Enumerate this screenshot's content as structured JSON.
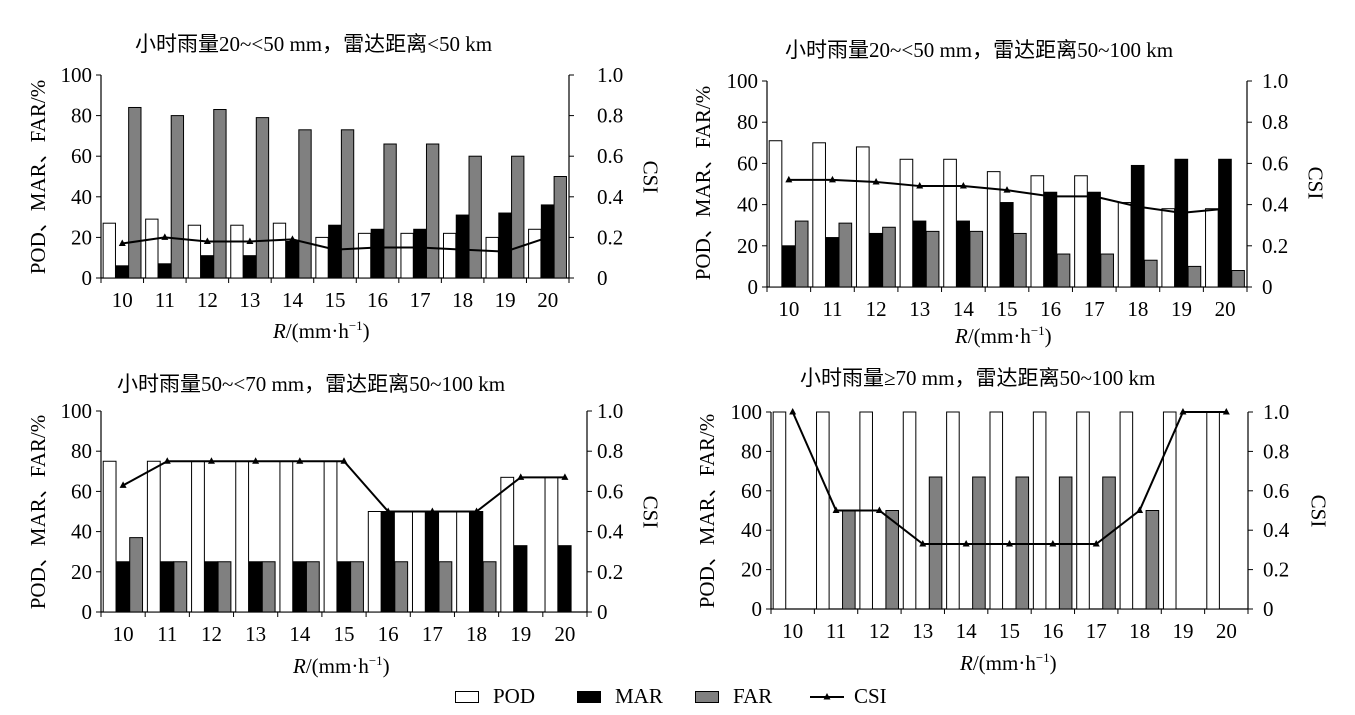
{
  "legend": {
    "pod": "POD",
    "mar": "MAR",
    "far": "FAR",
    "csi": "CSI"
  },
  "colors": {
    "pod": "#ffffff",
    "mar": "#000000",
    "far": "#808080",
    "csi": "#000000"
  },
  "chart_data": [
    {
      "type": "bar",
      "title": "小时雨量20~<50 mm，雷达距离<50 km",
      "ylabel": "POD、MAR、FAR/%",
      "y2label": "CSI",
      "xlabel_main": "R",
      "xlabel_unit": "/(mm·h",
      "xlabel_exp": "−1",
      "xlabel_close": ")",
      "categories": [
        "10",
        "11",
        "12",
        "13",
        "14",
        "15",
        "16",
        "17",
        "18",
        "19",
        "20"
      ],
      "ylim": [
        0,
        100
      ],
      "y2lim": [
        0,
        1.0
      ],
      "yticks": [
        "0",
        "20",
        "40",
        "60",
        "80",
        "100"
      ],
      "y2ticks": [
        "0",
        "0.2",
        "0.4",
        "0.6",
        "0.8",
        "1.0"
      ],
      "series": [
        {
          "name": "POD",
          "values": [
            27,
            29,
            26,
            26,
            27,
            20,
            22,
            22,
            22,
            20,
            24
          ]
        },
        {
          "name": "MAR",
          "values": [
            6,
            7,
            11,
            11,
            18,
            26,
            24,
            24,
            31,
            32,
            36
          ]
        },
        {
          "name": "FAR",
          "values": [
            84,
            80,
            83,
            79,
            73,
            73,
            66,
            66,
            60,
            60,
            50
          ]
        },
        {
          "name": "CSI",
          "axis": "right",
          "values": [
            0.17,
            0.2,
            0.18,
            0.18,
            0.19,
            0.14,
            0.15,
            0.15,
            0.14,
            0.13,
            0.2
          ]
        }
      ]
    },
    {
      "type": "bar",
      "title": "小时雨量20~<50 mm，雷达距离50~100 km",
      "ylabel": "POD、MAR、FAR/%",
      "y2label": "CSI",
      "xlabel_main": "R",
      "xlabel_unit": "/(mm·h",
      "xlabel_exp": "−1",
      "xlabel_close": ")",
      "categories": [
        "10",
        "11",
        "12",
        "13",
        "14",
        "15",
        "16",
        "17",
        "18",
        "19",
        "20"
      ],
      "ylim": [
        0,
        100
      ],
      "y2lim": [
        0,
        1.0
      ],
      "yticks": [
        "0",
        "20",
        "40",
        "60",
        "80",
        "100"
      ],
      "y2ticks": [
        "0",
        "0.2",
        "0.4",
        "0.6",
        "0.8",
        "1.0"
      ],
      "series": [
        {
          "name": "POD",
          "values": [
            71,
            70,
            68,
            62,
            62,
            56,
            54,
            54,
            41,
            38,
            38
          ]
        },
        {
          "name": "MAR",
          "values": [
            20,
            24,
            26,
            32,
            32,
            41,
            46,
            46,
            59,
            62,
            62
          ]
        },
        {
          "name": "FAR",
          "values": [
            32,
            31,
            29,
            27,
            27,
            26,
            16,
            16,
            13,
            10,
            8
          ]
        },
        {
          "name": "CSI",
          "axis": "right",
          "values": [
            0.52,
            0.52,
            0.51,
            0.49,
            0.49,
            0.47,
            0.44,
            0.44,
            0.39,
            0.36,
            0.38
          ]
        }
      ]
    },
    {
      "type": "bar",
      "title": "小时雨量50~<70 mm，雷达距离50~100 km",
      "ylabel": "POD、MAR、FAR/%",
      "y2label": "CSI",
      "xlabel_main": "R",
      "xlabel_unit": "/(mm·h",
      "xlabel_exp": "−1",
      "xlabel_close": ")",
      "categories": [
        "10",
        "11",
        "12",
        "13",
        "14",
        "15",
        "16",
        "17",
        "18",
        "19",
        "20"
      ],
      "ylim": [
        0,
        100
      ],
      "y2lim": [
        0,
        1.0
      ],
      "yticks": [
        "0",
        "20",
        "40",
        "60",
        "80",
        "100"
      ],
      "y2ticks": [
        "0",
        "0.2",
        "0.4",
        "0.6",
        "0.8",
        "1.0"
      ],
      "series": [
        {
          "name": "POD",
          "values": [
            75,
            75,
            75,
            75,
            75,
            75,
            50,
            50,
            50,
            67,
            67
          ]
        },
        {
          "name": "MAR",
          "values": [
            25,
            25,
            25,
            25,
            25,
            25,
            50,
            50,
            50,
            33,
            33
          ]
        },
        {
          "name": "FAR",
          "values": [
            37,
            25,
            25,
            25,
            25,
            25,
            25,
            25,
            25,
            0,
            0
          ]
        },
        {
          "name": "CSI",
          "axis": "right",
          "values": [
            0.63,
            0.75,
            0.75,
            0.75,
            0.75,
            0.75,
            0.5,
            0.5,
            0.5,
            0.67,
            0.67
          ]
        }
      ]
    },
    {
      "type": "bar",
      "title": "小时雨量≥70 mm，雷达距离50~100 km",
      "ylabel": "POD、MAR、FAR/%",
      "y2label": "CSI",
      "xlabel_main": "R",
      "xlabel_unit": "/(mm·h",
      "xlabel_exp": "−1",
      "xlabel_close": ")",
      "categories": [
        "10",
        "11",
        "12",
        "13",
        "14",
        "15",
        "16",
        "17",
        "18",
        "19",
        "20"
      ],
      "ylim": [
        0,
        100
      ],
      "y2lim": [
        0,
        1.0
      ],
      "yticks": [
        "0",
        "20",
        "40",
        "60",
        "80",
        "100"
      ],
      "y2ticks": [
        "0",
        "0.2",
        "0.4",
        "0.6",
        "0.8",
        "1.0"
      ],
      "series": [
        {
          "name": "POD",
          "values": [
            100,
            100,
            100,
            100,
            100,
            100,
            100,
            100,
            100,
            100,
            100
          ]
        },
        {
          "name": "MAR",
          "values": [
            0,
            0,
            0,
            0,
            0,
            0,
            0,
            0,
            0,
            0,
            0
          ]
        },
        {
          "name": "FAR",
          "values": [
            0,
            50,
            50,
            67,
            67,
            67,
            67,
            67,
            50,
            0,
            0
          ]
        },
        {
          "name": "CSI",
          "axis": "right",
          "values": [
            1.0,
            0.5,
            0.5,
            0.33,
            0.33,
            0.33,
            0.33,
            0.33,
            0.5,
            1.0,
            1.0
          ]
        }
      ]
    }
  ]
}
